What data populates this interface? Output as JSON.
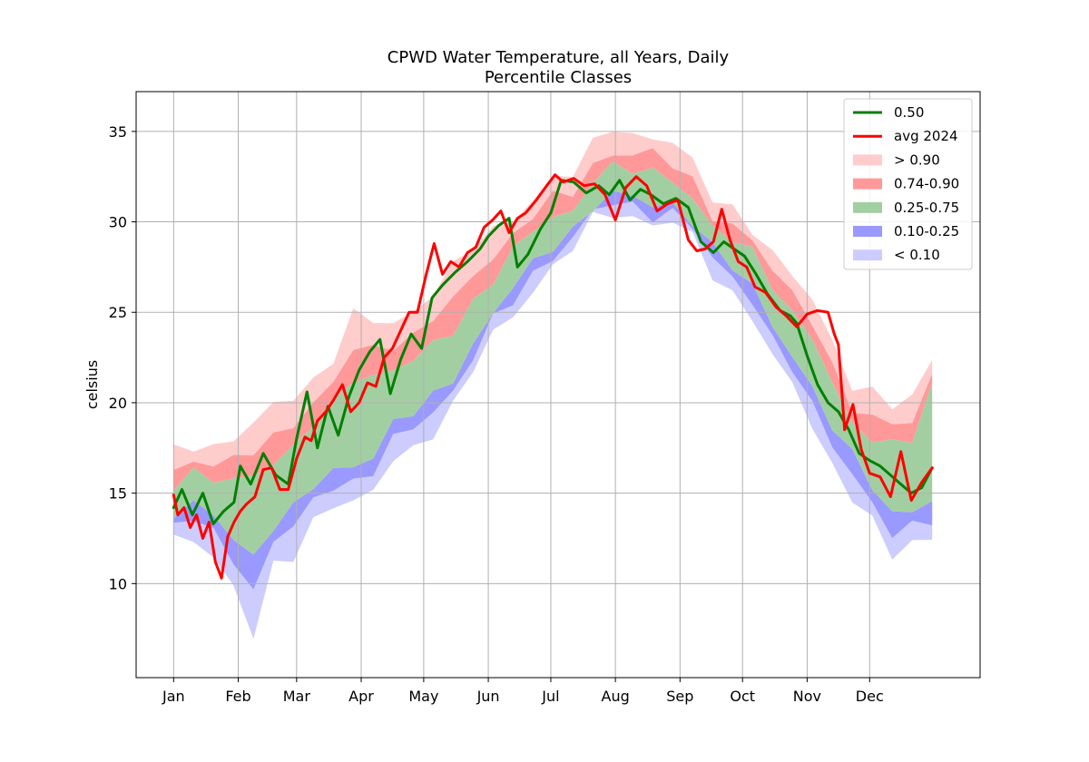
{
  "chart_data": {
    "type": "area",
    "title": "CPWD Water Temperature, all Years, Daily",
    "subtitle": "Percentile Classes",
    "xlabel": "",
    "ylabel": "celsius",
    "categories": [
      "Jan",
      "Feb",
      "Mar",
      "Apr",
      "May",
      "Jun",
      "Jul",
      "Aug",
      "Sep",
      "Oct",
      "Nov",
      "Dec"
    ],
    "x_day_of_year": [
      1,
      32,
      60,
      91,
      121,
      152,
      182,
      213,
      244,
      274,
      305,
      335,
      365
    ],
    "xlim": [
      -17,
      388
    ],
    "ylim": [
      4.8,
      37.2
    ],
    "yticks": [
      10,
      15,
      20,
      25,
      30,
      35
    ],
    "grid": true,
    "legend_position": "upper right",
    "colors": {
      "median": "#008000",
      "avg2024": "#ff0000",
      "gt90": "#ffcccc",
      "p74_90": "#ff9999",
      "p25_75": "#a2cfa2",
      "p10_25": "#9999ff",
      "lt10": "#ccccff"
    },
    "band_edges": {
      "p00": [
        12.2,
        12.6,
        11.5,
        10.0,
        7.0,
        10.8,
        11.5,
        13.5,
        14.6,
        14.4,
        15.0,
        16.8,
        17.5,
        18.5,
        19.8,
        21.8,
        23.7,
        24.8,
        26.4,
        27.5,
        28.6,
        30.0,
        30.5,
        30.3,
        30.0,
        30.0,
        29.0,
        27.0,
        26.0,
        25.0,
        22.5,
        21.0,
        18.5,
        16.5,
        15.0,
        13.5,
        11.5,
        12.0,
        12.5
      ],
      "p10": [
        13.0,
        13.6,
        12.8,
        11.6,
        9.5,
        12.3,
        13.0,
        14.6,
        15.6,
        15.6,
        16.2,
        17.8,
        18.6,
        19.6,
        20.7,
        22.6,
        24.4,
        25.6,
        27.1,
        28.2,
        29.2,
        30.4,
        31.0,
        30.8,
        30.5,
        30.6,
        29.7,
        27.8,
        26.8,
        25.8,
        23.6,
        22.0,
        19.6,
        17.6,
        16.1,
        14.6,
        12.8,
        13.0,
        13.4
      ],
      "p25": [
        13.8,
        14.3,
        13.6,
        12.7,
        11.5,
        13.3,
        14.0,
        15.3,
        16.3,
        16.6,
        17.2,
        18.7,
        19.4,
        20.3,
        21.5,
        23.3,
        24.9,
        26.3,
        27.6,
        28.8,
        29.6,
        30.9,
        31.4,
        31.3,
        31.0,
        31.0,
        30.2,
        28.4,
        27.4,
        26.4,
        24.4,
        22.8,
        20.6,
        18.6,
        17.0,
        15.6,
        14.0,
        14.0,
        14.5
      ],
      "p50": [
        14.6,
        15.0,
        14.4,
        14.0,
        13.8,
        15.3,
        16.4,
        16.5,
        17.8,
        19.3,
        20.2,
        20.4,
        20.7,
        21.8,
        22.7,
        24.5,
        26.0,
        27.3,
        28.4,
        29.5,
        29.6,
        31.6,
        32.1,
        31.9,
        31.8,
        31.7,
        30.8,
        29.0,
        28.1,
        27.4,
        25.4,
        24.5,
        21.6,
        20.0,
        17.8,
        16.5,
        15.5,
        15.3,
        16.0
      ],
      "p75": [
        15.6,
        16.0,
        15.7,
        15.5,
        16.2,
        16.8,
        17.5,
        18.8,
        19.8,
        21.5,
        21.5,
        22.0,
        22.2,
        23.1,
        24.0,
        25.6,
        27.0,
        28.3,
        29.4,
        30.2,
        30.6,
        32.6,
        33.0,
        32.8,
        32.6,
        32.4,
        31.5,
        29.7,
        29.0,
        28.1,
        26.6,
        25.0,
        23.8,
        21.0,
        18.6,
        18.0,
        17.8,
        18.3,
        20.8
      ],
      "p90": [
        16.4,
        16.8,
        16.6,
        16.6,
        17.4,
        18.2,
        19.0,
        19.9,
        20.9,
        23.0,
        23.0,
        23.4,
        23.6,
        24.6,
        25.6,
        27.0,
        28.3,
        29.2,
        30.4,
        31.2,
        31.6,
        33.3,
        33.8,
        33.8,
        33.6,
        33.2,
        32.3,
        30.5,
        29.8,
        28.8,
        27.3,
        26.0,
        24.8,
        22.0,
        19.6,
        19.0,
        18.8,
        19.2,
        21.5
      ],
      "p100": [
        17.4,
        17.8,
        17.6,
        17.8,
        18.8,
        19.8,
        20.6,
        21.2,
        22.4,
        24.8,
        24.4,
        24.6,
        25.0,
        26.2,
        27.3,
        28.6,
        29.6,
        30.3,
        31.3,
        32.2,
        32.6,
        34.3,
        35.5,
        34.8,
        34.6,
        34.2,
        33.3,
        31.5,
        30.8,
        29.6,
        28.0,
        27.0,
        25.8,
        23.5,
        21.0,
        20.4,
        19.8,
        20.2,
        22.7
      ]
    },
    "series": [
      {
        "name": "0.50",
        "x": [
          1,
          5,
          10,
          15,
          20,
          25,
          30,
          33,
          38,
          44,
          50,
          56,
          60,
          65,
          70,
          75,
          80,
          85,
          90,
          95,
          100,
          105,
          110,
          115,
          120,
          125,
          130,
          136,
          142,
          148,
          152,
          157,
          162,
          166,
          171,
          177,
          182,
          187,
          193,
          199,
          205,
          210,
          215,
          220,
          225,
          230,
          236,
          242,
          248,
          254,
          260,
          265,
          270,
          275,
          280,
          286,
          292,
          297,
          300,
          305,
          310,
          315,
          320,
          325,
          330,
          335,
          340,
          345,
          350,
          355,
          360,
          365
        ],
        "values": [
          14.2,
          15.2,
          13.8,
          15.0,
          13.3,
          14.0,
          14.5,
          16.5,
          15.5,
          17.2,
          16.0,
          15.5,
          18.0,
          20.6,
          17.5,
          19.8,
          18.2,
          20.3,
          21.8,
          22.8,
          23.5,
          20.5,
          22.4,
          23.8,
          23.0,
          25.8,
          26.5,
          27.2,
          27.8,
          28.5,
          29.2,
          29.8,
          30.2,
          27.5,
          28.2,
          29.6,
          30.5,
          32.3,
          32.2,
          31.6,
          32.0,
          31.5,
          32.3,
          31.2,
          31.8,
          31.5,
          31.0,
          31.3,
          30.8,
          28.9,
          28.3,
          28.9,
          28.5,
          28.1,
          27.2,
          26.0,
          25.1,
          24.8,
          24.4,
          22.6,
          21.0,
          20.0,
          19.5,
          18.5,
          17.2,
          16.8,
          16.5,
          16.0,
          15.5,
          15.0,
          15.3,
          16.4
        ]
      },
      {
        "name": "avg 2024",
        "x": [
          1,
          3,
          6,
          9,
          12,
          15,
          18,
          21,
          24,
          27,
          30,
          33,
          36,
          40,
          44,
          48,
          52,
          56,
          60,
          64,
          67,
          70,
          74,
          78,
          82,
          86,
          90,
          94,
          98,
          102,
          106,
          110,
          114,
          118,
          122,
          126,
          130,
          134,
          138,
          142,
          146,
          150,
          154,
          158,
          162,
          166,
          170,
          175,
          180,
          184,
          188,
          193,
          198,
          203,
          208,
          213,
          218,
          223,
          228,
          233,
          238,
          243,
          248,
          252,
          256,
          260,
          264,
          268,
          272,
          276,
          280,
          285,
          290,
          295,
          300,
          305,
          310,
          315,
          318,
          320,
          323,
          327,
          331,
          335,
          340,
          345,
          350,
          355,
          360,
          365
        ],
        "values": [
          14.9,
          13.8,
          14.2,
          13.1,
          13.8,
          12.5,
          13.4,
          11.2,
          10.3,
          12.6,
          13.4,
          14.0,
          14.4,
          14.8,
          16.3,
          16.4,
          15.2,
          15.2,
          16.9,
          18.1,
          17.9,
          19.0,
          19.5,
          20.2,
          21.0,
          19.5,
          20.0,
          21.1,
          20.9,
          22.5,
          23.0,
          24.0,
          25.0,
          25.0,
          27.0,
          28.8,
          27.1,
          27.8,
          27.5,
          28.3,
          28.6,
          29.7,
          30.1,
          30.6,
          29.4,
          30.2,
          30.5,
          31.2,
          32.0,
          32.6,
          32.2,
          32.4,
          32.0,
          32.1,
          31.5,
          30.1,
          31.9,
          32.5,
          32.0,
          30.6,
          31.0,
          31.2,
          29.0,
          28.4,
          28.5,
          28.9,
          30.7,
          29.0,
          27.8,
          27.5,
          26.4,
          26.1,
          25.3,
          24.8,
          24.2,
          24.9,
          25.1,
          25.0,
          23.8,
          23.2,
          18.5,
          19.9,
          17.4,
          16.1,
          15.9,
          14.8,
          17.3,
          14.6,
          15.6,
          16.4
        ]
      }
    ],
    "legend": [
      "0.50",
      "avg 2024",
      "> 0.90",
      "0.74-0.90",
      "0.25-0.75",
      "0.10-0.25",
      "< 0.10"
    ]
  }
}
